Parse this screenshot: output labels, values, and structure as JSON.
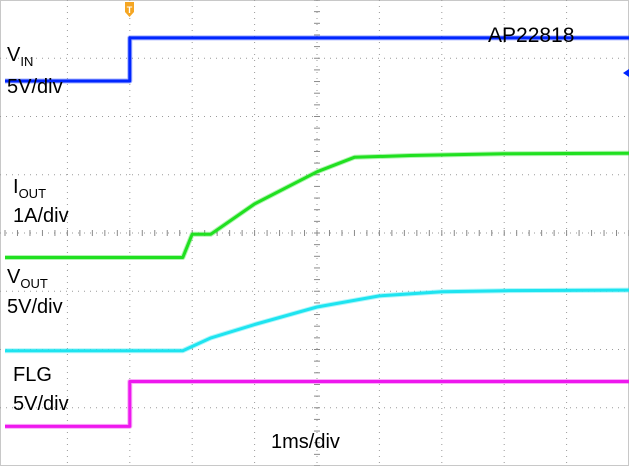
{
  "chart_data": {
    "type": "line",
    "title": "AP22818",
    "x_scale_label": "1ms/div",
    "x_divisions": 10,
    "y_divisions": 8,
    "grid": true,
    "x_unit": "div",
    "series": [
      {
        "key": "vin",
        "label_main": "V",
        "label_sub": "IN",
        "scale": "5V/div",
        "color": "#0026ff",
        "x": [
          0,
          2.0,
          2.0,
          10
        ],
        "y": [
          6.61,
          6.61,
          7.35,
          7.35
        ]
      },
      {
        "key": "iout",
        "label_main": "I",
        "label_sub": "OUT",
        "scale": "1A/div",
        "color": "#20e020",
        "x": [
          0,
          2.85,
          3.0,
          3.3,
          4.0,
          5.0,
          5.6,
          6.5,
          8.0,
          10
        ],
        "y": [
          3.58,
          3.58,
          3.98,
          3.98,
          4.5,
          5.05,
          5.3,
          5.33,
          5.36,
          5.37
        ]
      },
      {
        "key": "vout",
        "label_main": "V",
        "label_sub": "OUT",
        "scale": "5V/div",
        "color": "#1ee4f0",
        "x": [
          0,
          2.85,
          3.3,
          4.0,
          5.0,
          6.0,
          7.0,
          8.0,
          10
        ],
        "y": [
          1.98,
          1.98,
          2.2,
          2.43,
          2.73,
          2.92,
          2.99,
          3.01,
          3.02
        ]
      },
      {
        "key": "flg",
        "label_main": "FLG",
        "label_sub": "",
        "scale": "5V/div",
        "color": "#ee18ee",
        "x": [
          0,
          2.0,
          2.0,
          10
        ],
        "y": [
          0.68,
          0.68,
          1.45,
          1.45
        ]
      }
    ]
  }
}
